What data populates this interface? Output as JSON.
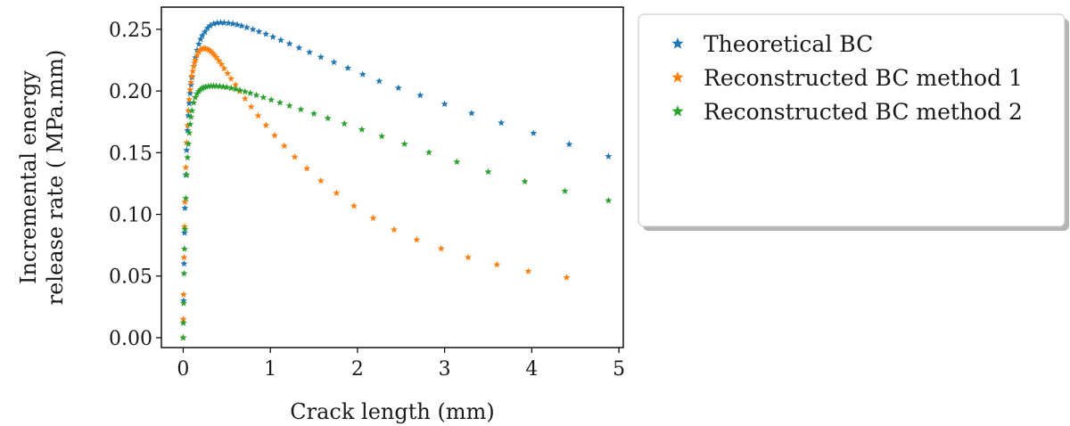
{
  "chart_data": {
    "type": "scatter",
    "marker": "star",
    "xlabel": "Crack length (mm)",
    "ylabel_lines": [
      "Incremental energy",
      "release rate ( MPa.mm)"
    ],
    "xlim": [
      -0.25,
      5.05
    ],
    "ylim": [
      -0.008,
      0.268
    ],
    "xticks": [
      0,
      1,
      2,
      3,
      4,
      5
    ],
    "yticks": [
      0.0,
      0.05,
      0.1,
      0.15,
      0.2,
      0.25
    ],
    "ytick_labels": [
      "0.00",
      "0.05",
      "0.10",
      "0.15",
      "0.20",
      "0.25"
    ],
    "legend_position": "outside-right-top",
    "grid": false,
    "series": [
      {
        "name": "Theoretical BC",
        "color": "#1f77b4",
        "x": [
          0.0,
          0.002,
          0.005,
          0.01,
          0.015,
          0.02,
          0.03,
          0.04,
          0.05,
          0.06,
          0.07,
          0.08,
          0.09,
          0.1,
          0.12,
          0.14,
          0.16,
          0.18,
          0.2,
          0.22,
          0.25,
          0.28,
          0.31,
          0.35,
          0.39,
          0.43,
          0.47,
          0.52,
          0.57,
          0.62,
          0.67,
          0.73,
          0.8,
          0.87,
          0.95,
          1.03,
          1.12,
          1.22,
          1.33,
          1.45,
          1.58,
          1.73,
          1.89,
          2.06,
          2.25,
          2.47,
          2.72,
          3.0,
          3.31,
          3.65,
          4.02,
          4.43,
          4.88
        ],
        "y": [
          0.0,
          0.012,
          0.03,
          0.06,
          0.085,
          0.105,
          0.132,
          0.152,
          0.168,
          0.18,
          0.19,
          0.198,
          0.205,
          0.211,
          0.22,
          0.227,
          0.233,
          0.238,
          0.242,
          0.245,
          0.248,
          0.251,
          0.253,
          0.2545,
          0.2552,
          0.2555,
          0.2553,
          0.255,
          0.2545,
          0.2538,
          0.2528,
          0.2515,
          0.25,
          0.2482,
          0.2462,
          0.2438,
          0.2412,
          0.2383,
          0.235,
          0.2314,
          0.2275,
          0.2233,
          0.2186,
          0.2135,
          0.208,
          0.2025,
          0.1965,
          0.1895,
          0.182,
          0.1742,
          0.1658,
          0.1568,
          0.147
        ]
      },
      {
        "name": "Reconstructed BC method 1",
        "color": "#ff7f0e",
        "x": [
          0.0,
          0.002,
          0.005,
          0.01,
          0.015,
          0.02,
          0.03,
          0.04,
          0.05,
          0.06,
          0.07,
          0.08,
          0.09,
          0.1,
          0.11,
          0.12,
          0.13,
          0.14,
          0.16,
          0.18,
          0.2,
          0.22,
          0.24,
          0.26,
          0.28,
          0.3,
          0.32,
          0.34,
          0.36,
          0.38,
          0.41,
          0.44,
          0.47,
          0.51,
          0.55,
          0.6,
          0.65,
          0.71,
          0.78,
          0.86,
          0.95,
          1.05,
          1.16,
          1.28,
          1.42,
          1.58,
          1.76,
          1.96,
          2.18,
          2.42,
          2.68,
          2.96,
          3.27,
          3.6,
          3.96,
          4.4
        ],
        "y": [
          0.0,
          0.015,
          0.035,
          0.065,
          0.09,
          0.11,
          0.138,
          0.158,
          0.172,
          0.184,
          0.193,
          0.201,
          0.207,
          0.212,
          0.216,
          0.22,
          0.223,
          0.225,
          0.229,
          0.232,
          0.2335,
          0.2342,
          0.2345,
          0.2343,
          0.2338,
          0.233,
          0.2318,
          0.2305,
          0.229,
          0.2272,
          0.2245,
          0.2215,
          0.2182,
          0.2142,
          0.21,
          0.205,
          0.1998,
          0.1938,
          0.1872,
          0.18,
          0.1722,
          0.164,
          0.1555,
          0.1465,
          0.1372,
          0.1272,
          0.1172,
          0.1068,
          0.097,
          0.0876,
          0.0794,
          0.0722,
          0.0651,
          0.0592,
          0.0538,
          0.0488
        ]
      },
      {
        "name": "Reconstructed BC method 2",
        "color": "#2ca02c",
        "x": [
          0.0,
          0.002,
          0.005,
          0.01,
          0.015,
          0.02,
          0.03,
          0.04,
          0.05,
          0.06,
          0.07,
          0.08,
          0.09,
          0.1,
          0.12,
          0.14,
          0.16,
          0.18,
          0.2,
          0.22,
          0.24,
          0.26,
          0.29,
          0.32,
          0.35,
          0.38,
          0.42,
          0.46,
          0.5,
          0.55,
          0.6,
          0.65,
          0.71,
          0.77,
          0.84,
          0.92,
          1.01,
          1.11,
          1.22,
          1.35,
          1.5,
          1.66,
          1.85,
          2.05,
          2.28,
          2.54,
          2.82,
          3.14,
          3.5,
          3.92,
          4.38,
          4.88
        ],
        "y": [
          0.0,
          0.012,
          0.028,
          0.052,
          0.072,
          0.088,
          0.113,
          0.132,
          0.146,
          0.157,
          0.166,
          0.173,
          0.179,
          0.184,
          0.1905,
          0.1948,
          0.1978,
          0.1998,
          0.2012,
          0.2022,
          0.2029,
          0.2034,
          0.2038,
          0.204,
          0.2041,
          0.204,
          0.2038,
          0.2035,
          0.203,
          0.2023,
          0.2015,
          0.2006,
          0.1995,
          0.1982,
          0.1966,
          0.1948,
          0.1928,
          0.1905,
          0.188,
          0.185,
          0.1816,
          0.1779,
          0.1735,
          0.1688,
          0.1633,
          0.157,
          0.1502,
          0.1425,
          0.1345,
          0.1266,
          0.1188,
          0.1112
        ]
      }
    ]
  }
}
